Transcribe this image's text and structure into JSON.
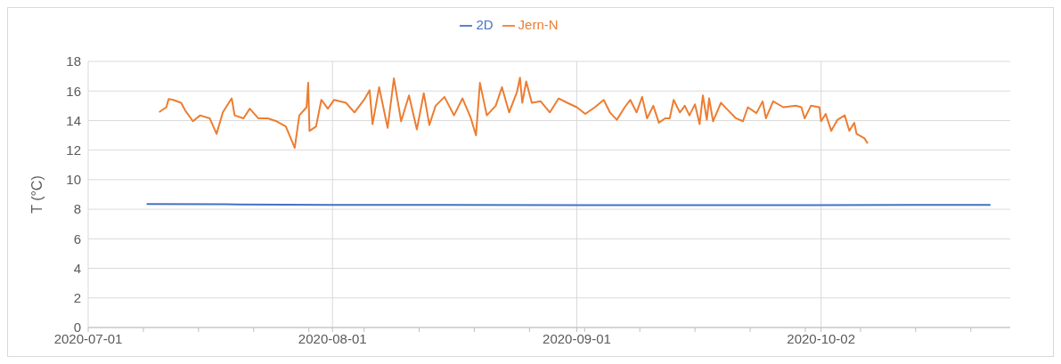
{
  "chart_data": {
    "type": "line",
    "ylabel": "T (°C)",
    "legend": "top",
    "grid": true,
    "marker": "none",
    "line_style": "solid",
    "xlim": [
      "2020-07-01",
      "2020-10-26"
    ],
    "xticks": [
      "2020-07-01",
      {
        "value": "2020-07-08",
        "label": null
      },
      {
        "value": "2020-07-15",
        "label": null
      },
      {
        "value": "2020-07-22",
        "label": null
      },
      {
        "value": "2020-07-29",
        "label": null
      },
      "2020-08-01",
      {
        "value": "2020-08-05",
        "label": null
      },
      {
        "value": "2020-08-12",
        "label": null
      },
      {
        "value": "2020-08-19",
        "label": null
      },
      {
        "value": "2020-08-26",
        "label": null
      },
      "2020-09-01",
      {
        "value": "2020-09-02",
        "label": null
      },
      {
        "value": "2020-09-09",
        "label": null
      },
      {
        "value": "2020-09-16",
        "label": null
      },
      {
        "value": "2020-09-23",
        "label": null
      },
      {
        "value": "2020-09-30",
        "label": null
      },
      "2020-10-02",
      {
        "value": "2020-10-07",
        "label": null
      },
      {
        "value": "2020-10-14",
        "label": null
      },
      {
        "value": "2020-10-21",
        "label": null
      }
    ],
    "ylim": [
      0,
      18
    ],
    "yticks": [
      0,
      2,
      4,
      6,
      8,
      10,
      12,
      14,
      16,
      18
    ],
    "series": [
      {
        "name": "2D",
        "color": "#4472c4",
        "x": [
          "2020-07-08T10:00",
          "2020-07-20T00:00",
          "2020-08-01T00:00",
          "2020-09-01T00:00",
          "2020-10-01T00:00",
          "2020-10-23T12:00"
        ],
        "values": [
          8.35,
          8.33,
          8.3,
          8.28,
          8.28,
          8.3
        ]
      },
      {
        "name": "Jern-N",
        "color": "#ed7d31",
        "x": [
          "2020-07-10T00:00",
          "2020-07-10T22:00",
          "2020-07-11T05:00",
          "2020-07-11T19:00",
          "2020-07-12T19:00",
          "2020-07-13T07:00",
          "2020-07-14T07:00",
          "2020-07-15T05:00",
          "2020-07-16T10:00",
          "2020-07-17T07:00",
          "2020-07-18T02:00",
          "2020-07-19T05:00",
          "2020-07-19T14:00",
          "2020-07-20T17:00",
          "2020-07-21T12:00",
          "2020-07-22T14:00",
          "2020-07-23T19:00",
          "2020-07-24T22:00",
          "2020-07-26T02:00",
          "2020-07-27T05:00",
          "2020-07-27T19:00",
          "2020-07-28T17:00",
          "2020-07-28T22:00",
          "2020-07-29T02:00",
          "2020-07-29T22:00",
          "2020-07-30T14:00",
          "2020-07-31T10:00",
          "2020-08-01T05:00",
          "2020-08-02T17:00",
          "2020-08-03T19:00",
          "2020-08-05T00:00",
          "2020-08-05T17:00",
          "2020-08-06T02:00",
          "2020-08-06T22:00",
          "2020-08-08T00:00",
          "2020-08-08T19:00",
          "2020-08-09T17:00",
          "2020-08-10T17:00",
          "2020-08-11T17:00",
          "2020-08-12T14:00",
          "2020-08-13T07:00",
          "2020-08-14T02:00",
          "2020-08-15T05:00",
          "2020-08-16T10:00",
          "2020-08-17T12:00",
          "2020-08-18T12:00",
          "2020-08-19T05:00",
          "2020-08-19T17:00",
          "2020-08-20T14:00",
          "2020-08-21T17:00",
          "2020-08-22T12:00",
          "2020-08-23T10:00",
          "2020-08-24T10:00",
          "2020-08-24T19:00",
          "2020-08-25T02:00",
          "2020-08-25T14:00",
          "2020-08-26T07:00",
          "2020-08-27T10:00",
          "2020-08-28T14:00",
          "2020-08-29T17:00",
          "2020-08-30T19:00",
          "2020-09-01T00:00",
          "2020-09-02T02:00",
          "2020-09-03T07:00",
          "2020-09-04T10:00",
          "2020-09-05T05:00",
          "2020-09-06T02:00",
          "2020-09-07T02:00",
          "2020-09-07T19:00",
          "2020-09-08T14:00",
          "2020-09-09T07:00",
          "2020-09-09T22:00",
          "2020-09-10T17:00",
          "2020-09-11T10:00",
          "2020-09-12T05:00",
          "2020-09-12T19:00",
          "2020-09-13T07:00",
          "2020-09-14T02:00",
          "2020-09-14T17:00",
          "2020-09-15T07:00",
          "2020-09-16T00:00",
          "2020-09-16T14:00",
          "2020-09-17T00:00",
          "2020-09-17T12:00",
          "2020-09-17T19:00",
          "2020-09-18T07:00",
          "2020-09-19T07:00",
          "2020-09-20T00:00",
          "2020-09-21T05:00",
          "2020-09-22T02:00",
          "2020-09-22T17:00",
          "2020-09-23T19:00",
          "2020-09-24T14:00",
          "2020-09-25T00:00",
          "2020-09-25T22:00",
          "2020-09-27T05:00",
          "2020-09-28T19:00",
          "2020-09-29T12:00",
          "2020-09-29T22:00",
          "2020-09-30T17:00",
          "2020-10-01T19:00",
          "2020-10-02T00:00",
          "2020-10-02T14:00",
          "2020-10-03T07:00",
          "2020-10-04T02:00",
          "2020-10-05T00:00",
          "2020-10-05T14:00",
          "2020-10-06T05:00",
          "2020-10-06T12:00",
          "2020-10-07T12:00",
          "2020-10-07T22:00"
        ],
        "values": [
          14.57,
          14.9,
          15.45,
          15.4,
          15.2,
          14.7,
          13.95,
          14.35,
          14.15,
          13.1,
          14.55,
          15.5,
          14.35,
          14.15,
          14.8,
          14.15,
          14.15,
          13.95,
          13.6,
          12.15,
          14.35,
          14.9,
          16.55,
          13.3,
          13.6,
          15.4,
          14.8,
          15.4,
          15.2,
          14.55,
          15.4,
          16.05,
          13.75,
          16.25,
          13.5,
          16.85,
          13.95,
          15.7,
          13.4,
          15.85,
          13.7,
          15.0,
          15.6,
          14.35,
          15.5,
          14.25,
          13.0,
          16.55,
          14.35,
          15.0,
          16.25,
          14.55,
          15.95,
          16.9,
          15.2,
          16.65,
          15.2,
          15.3,
          14.55,
          15.5,
          15.2,
          14.9,
          14.45,
          14.9,
          15.4,
          14.55,
          14.05,
          14.9,
          15.4,
          14.55,
          15.6,
          14.15,
          15.0,
          13.85,
          14.15,
          14.15,
          15.4,
          14.55,
          15.0,
          14.35,
          15.1,
          13.75,
          15.7,
          14.05,
          15.5,
          13.95,
          15.2,
          14.8,
          14.15,
          13.95,
          14.9,
          14.5,
          15.3,
          14.15,
          15.3,
          14.9,
          15.0,
          14.9,
          14.15,
          15.0,
          14.9,
          13.95,
          14.45,
          13.3,
          14.05,
          14.35,
          13.3,
          13.85,
          13.1,
          12.8,
          12.45
        ]
      }
    ]
  }
}
